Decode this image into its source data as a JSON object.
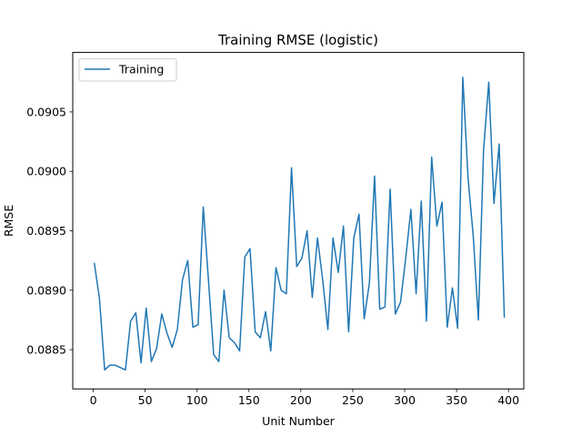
{
  "chart_data": {
    "type": "line",
    "title": "Training RMSE (logistic)",
    "xlabel": "Unit Number",
    "ylabel": "RMSE",
    "xlim": [
      -19.75,
      414.75
    ],
    "ylim": [
      0.08817,
      0.091
    ],
    "xticks": [
      0,
      50,
      100,
      150,
      200,
      250,
      300,
      350,
      400
    ],
    "xtick_labels": [
      "0",
      "50",
      "100",
      "150",
      "200",
      "250",
      "300",
      "350",
      "400"
    ],
    "yticks": [
      0.0885,
      0.089,
      0.0895,
      0.09,
      0.0905
    ],
    "ytick_labels": [
      "0.0885",
      "0.0890",
      "0.0895",
      "0.0900",
      "0.0905"
    ],
    "grid": false,
    "legend": {
      "position": "upper-left",
      "entries": [
        "Training"
      ]
    },
    "series": [
      {
        "name": "Training",
        "color": "#1f77b4",
        "x": [
          1,
          6,
          11,
          16,
          21,
          26,
          31,
          36,
          41,
          46,
          51,
          56,
          61,
          66,
          71,
          76,
          81,
          86,
          91,
          96,
          101,
          106,
          111,
          116,
          121,
          126,
          131,
          136,
          141,
          146,
          151,
          156,
          161,
          166,
          171,
          176,
          181,
          186,
          191,
          196,
          201,
          206,
          211,
          216,
          221,
          226,
          231,
          236,
          241,
          246,
          251,
          256,
          261,
          266,
          271,
          276,
          281,
          286,
          291,
          296,
          301,
          306,
          311,
          316,
          321,
          326,
          331,
          336,
          341,
          346,
          351,
          356,
          361,
          366,
          371,
          376,
          381,
          386,
          391,
          396
        ],
        "values": [
          0.08923,
          0.08893,
          0.08833,
          0.08837,
          0.08837,
          0.08835,
          0.08833,
          0.08874,
          0.08881,
          0.08839,
          0.08885,
          0.0884,
          0.08851,
          0.0888,
          0.08864,
          0.08852,
          0.08867,
          0.08909,
          0.08925,
          0.08869,
          0.08871,
          0.0897,
          0.08908,
          0.08846,
          0.0884,
          0.089,
          0.0886,
          0.08856,
          0.08849,
          0.08928,
          0.08935,
          0.08865,
          0.0886,
          0.08882,
          0.08849,
          0.08919,
          0.089,
          0.08897,
          0.09003,
          0.0892,
          0.08927,
          0.0895,
          0.08894,
          0.08944,
          0.08909,
          0.08867,
          0.08944,
          0.08915,
          0.08954,
          0.08865,
          0.08944,
          0.08964,
          0.08876,
          0.08906,
          0.08996,
          0.08884,
          0.08886,
          0.08985,
          0.0888,
          0.0889,
          0.08927,
          0.08968,
          0.08897,
          0.08975,
          0.08874,
          0.09012,
          0.08954,
          0.08974,
          0.08869,
          0.08902,
          0.08868,
          0.09079,
          0.08995,
          0.08946,
          0.08875,
          0.09018,
          0.09075,
          0.08973,
          0.09023,
          0.08877
        ]
      }
    ]
  }
}
